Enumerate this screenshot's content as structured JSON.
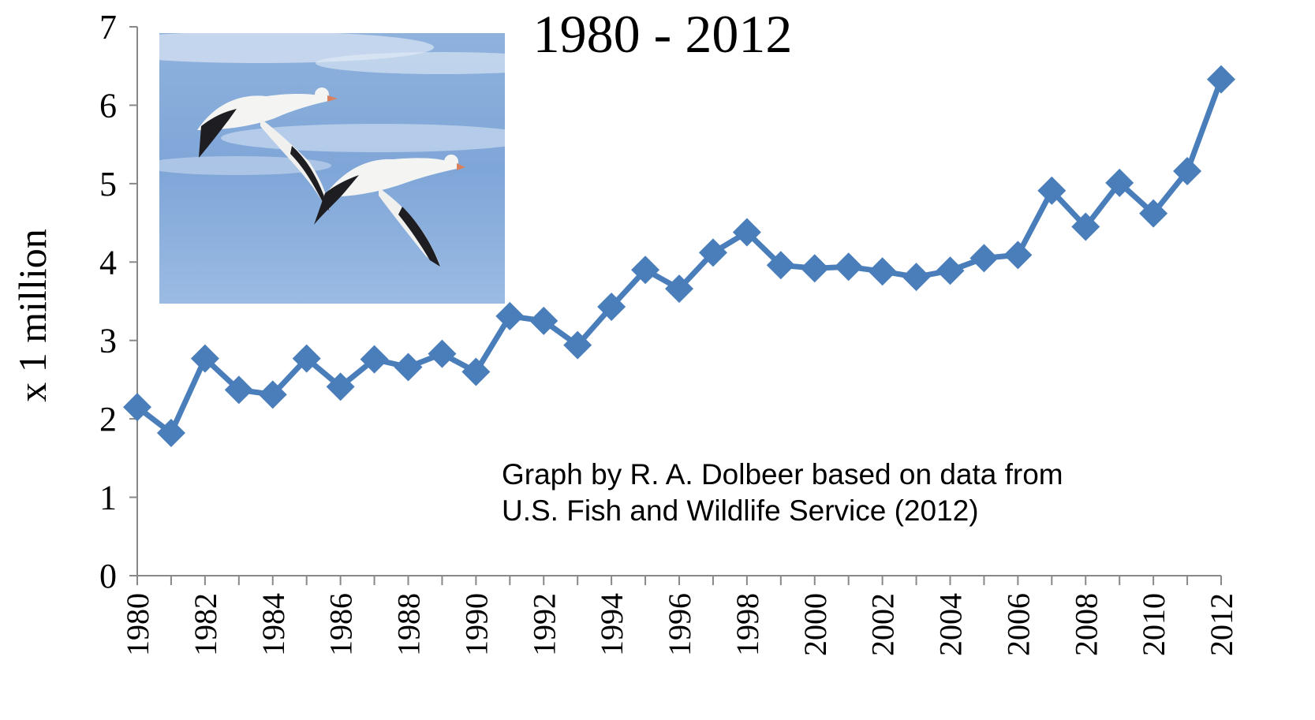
{
  "chart_data": {
    "type": "line",
    "title": "1980 - 2012",
    "xlabel": "",
    "ylabel": "x 1 million",
    "ylim": [
      0,
      7
    ],
    "yticks": [
      "0",
      "1",
      "2",
      "3",
      "4",
      "5",
      "6",
      "7"
    ],
    "xticks": [
      "1980",
      "1982",
      "1984",
      "1986",
      "1988",
      "1990",
      "1992",
      "1994",
      "1996",
      "1998",
      "2000",
      "2002",
      "2004",
      "2006",
      "2008",
      "2010",
      "2012"
    ],
    "x": [
      1980,
      1981,
      1982,
      1983,
      1984,
      1985,
      1986,
      1987,
      1988,
      1989,
      1990,
      1991,
      1992,
      1993,
      1994,
      1995,
      1996,
      1997,
      1998,
      1999,
      2000,
      2001,
      2002,
      2003,
      2004,
      2005,
      2006,
      2007,
      2008,
      2009,
      2010,
      2011,
      2012
    ],
    "series": [
      {
        "values": [
          2.15,
          1.82,
          2.77,
          2.37,
          2.31,
          2.77,
          2.41,
          2.76,
          2.66,
          2.83,
          2.6,
          3.31,
          3.25,
          2.94,
          3.43,
          3.9,
          3.66,
          4.12,
          4.38,
          3.96,
          3.92,
          3.94,
          3.88,
          3.81,
          3.89,
          4.05,
          4.09,
          4.91,
          4.45,
          5.01,
          4.62,
          5.16,
          6.33
        ]
      }
    ],
    "grid": false,
    "line_color": "#4a7ebb",
    "annotation": [
      "Graph by R. A. Dolbeer based on data from",
      "U.S. Fish and Wildlife Service (2012)"
    ],
    "inset_image": "flying-snow-geese-photo"
  }
}
